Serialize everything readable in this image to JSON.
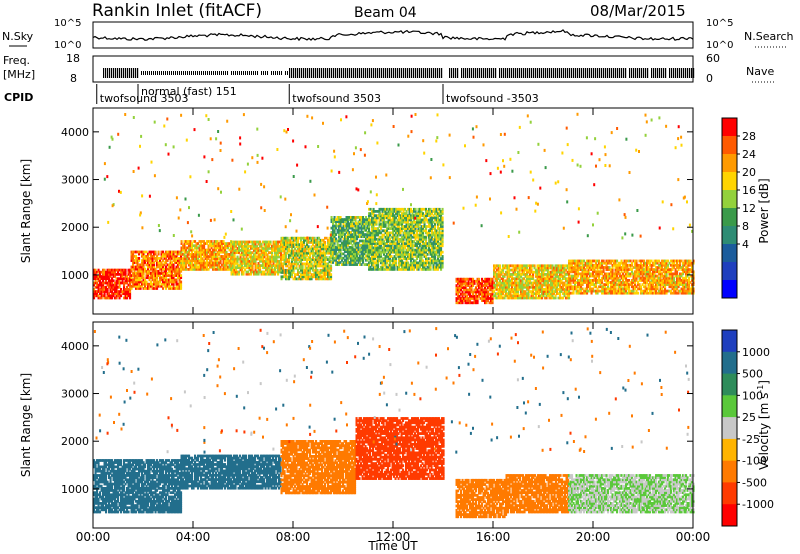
{
  "header": {
    "title": "Rankin Inlet (fitACF)",
    "beam": "Beam 04",
    "date": "08/Mar/2015"
  },
  "top_panel": {
    "left_label": "N.Sky",
    "right_label": "N.Search",
    "left_ticks": [
      "10^5",
      "10^0"
    ],
    "right_ticks": [
      "10^5",
      "10^0"
    ]
  },
  "freq_panel": {
    "left_label_1": "Freq.",
    "left_label_2": "[MHz]",
    "right_label": "Nave",
    "left_ticks": [
      "18",
      "8"
    ],
    "right_ticks": [
      "60",
      "0"
    ]
  },
  "cpid": {
    "label": "CPID",
    "segments": [
      {
        "label": "twofsound 3503",
        "start": 0.15
      },
      {
        "label": "normal (fast) 151",
        "start": 1.8
      },
      {
        "label": "twofsound 3503",
        "start": 7.85
      },
      {
        "label": "twofsound -3503",
        "start": 14.0
      }
    ]
  },
  "axis": {
    "ylabel": "Slant Range [km]",
    "xlabel": "Time UT",
    "y_ticks": [
      "4000",
      "3000",
      "2000",
      "1000"
    ],
    "x_ticks": [
      "00:00",
      "04:00",
      "08:00",
      "12:00",
      "16:00",
      "20:00",
      "00:00"
    ]
  },
  "power_bar": {
    "title": "Power [dB]",
    "ticks": [
      "28",
      "24",
      "20",
      "16",
      "12",
      "8",
      "4"
    ],
    "colors": [
      "#ff0000",
      "#ff5a00",
      "#ff9a00",
      "#ffd400",
      "#93d13c",
      "#3a9a4a",
      "#2e8c74",
      "#1b5c9c",
      "#1f3fbe",
      "#0000ff"
    ]
  },
  "velocity_bar": {
    "title": "Velocity [m s",
    "title_sup": "-1",
    "title_end": "]",
    "ticks": [
      "1000",
      "500",
      "100",
      "25",
      "-25",
      "-100",
      "-500",
      "-1000"
    ],
    "colors": [
      "#1f3fbe",
      "#226e8c",
      "#2e8c5a",
      "#5ac83a",
      "#c8c8c8",
      "#ffb400",
      "#ff7a00",
      "#ff3a00",
      "#ff0000"
    ]
  },
  "chart_data": [
    {
      "type": "heatmap",
      "title": "Power",
      "xlabel": "Time UT",
      "ylabel": "Slant Range [km]",
      "xlim": [
        0,
        24
      ],
      "ylim": [
        180,
        4500
      ],
      "units": "dB",
      "scale": [
        0,
        30
      ],
      "bands": [
        {
          "t": [
            0.0,
            1.5
          ],
          "r": [
            500,
            1100
          ],
          "value": 28
        },
        {
          "t": [
            1.5,
            3.5
          ],
          "r": [
            700,
            1500
          ],
          "value": 24
        },
        {
          "t": [
            3.5,
            5.5
          ],
          "r": [
            1100,
            1700
          ],
          "value": 22
        },
        {
          "t": [
            5.5,
            7.5
          ],
          "r": [
            1000,
            1700
          ],
          "value": 20
        },
        {
          "t": [
            7.5,
            9.5
          ],
          "r": [
            900,
            1800
          ],
          "value": 18
        },
        {
          "t": [
            9.5,
            11.0
          ],
          "r": [
            1200,
            2200
          ],
          "value": 14
        },
        {
          "t": [
            11.0,
            14.0
          ],
          "r": [
            1100,
            2400
          ],
          "value": 16
        },
        {
          "t": [
            14.5,
            16.0
          ],
          "r": [
            400,
            900
          ],
          "value": 26
        },
        {
          "t": [
            16.0,
            19.0
          ],
          "r": [
            500,
            1200
          ],
          "value": 20
        },
        {
          "t": [
            19.0,
            24.0
          ],
          "r": [
            600,
            1300
          ],
          "value": 22
        }
      ]
    },
    {
      "type": "heatmap",
      "title": "Velocity",
      "xlabel": "Time UT",
      "ylabel": "Slant Range [km]",
      "xlim": [
        0,
        24
      ],
      "ylim": [
        180,
        4500
      ],
      "units": "m s-1",
      "bands": [
        {
          "t": [
            0.0,
            3.5
          ],
          "r": [
            500,
            1600
          ],
          "value": 150
        },
        {
          "t": [
            3.5,
            7.5
          ],
          "r": [
            1000,
            1700
          ],
          "value": 120
        },
        {
          "t": [
            7.5,
            10.5
          ],
          "r": [
            900,
            2000
          ],
          "value": -200
        },
        {
          "t": [
            10.5,
            14.0
          ],
          "r": [
            1200,
            2500
          ],
          "value": -600
        },
        {
          "t": [
            14.5,
            16.5
          ],
          "r": [
            400,
            1200
          ],
          "value": -300
        },
        {
          "t": [
            16.5,
            19.0
          ],
          "r": [
            500,
            1300
          ],
          "value": -150
        },
        {
          "t": [
            19.0,
            24.0
          ],
          "r": [
            500,
            1300
          ],
          "value": 0
        }
      ]
    }
  ]
}
